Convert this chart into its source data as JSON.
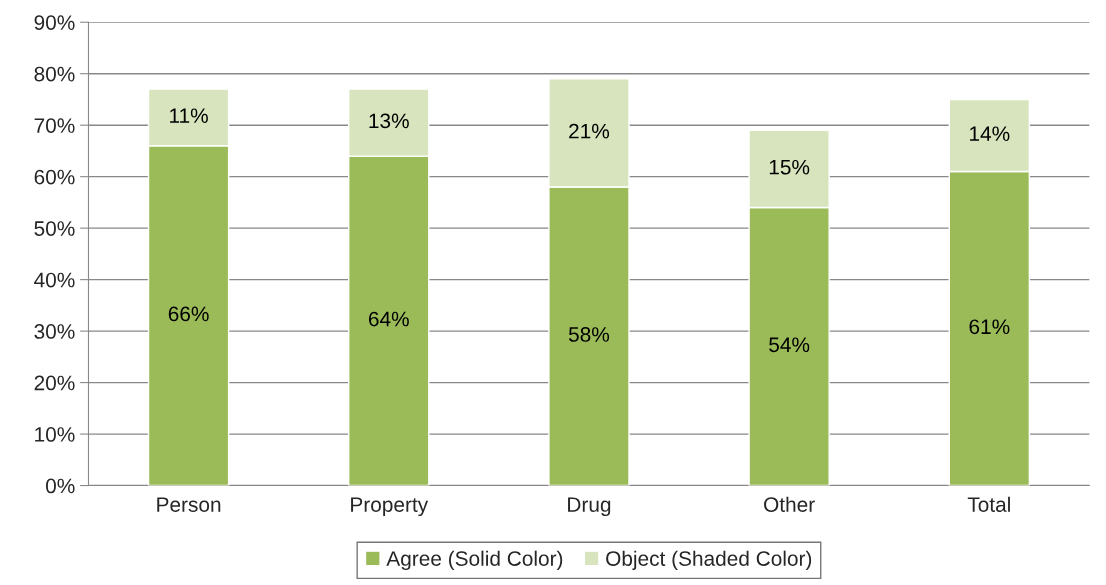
{
  "chart_data": {
    "type": "bar",
    "stacked": true,
    "categories": [
      "Person",
      "Property",
      "Drug",
      "Other",
      "Total"
    ],
    "series": [
      {
        "name": "Agree (Solid Color)",
        "color": "#9bbb59",
        "values": [
          66,
          64,
          58,
          54,
          61
        ],
        "value_labels": [
          "66%",
          "64%",
          "58%",
          "54%",
          "61%"
        ]
      },
      {
        "name": "Object (Shaded Color)",
        "color": "#d7e4bd",
        "values": [
          11,
          13,
          21,
          15,
          14
        ],
        "value_labels": [
          "11%",
          "13%",
          "21%",
          "15%",
          "14%"
        ]
      }
    ],
    "ylim": [
      0,
      90
    ],
    "yticks": [
      {
        "value": 0,
        "label": "0%"
      },
      {
        "value": 10,
        "label": "10%"
      },
      {
        "value": 20,
        "label": "20%"
      },
      {
        "value": 30,
        "label": "30%"
      },
      {
        "value": 40,
        "label": "40%"
      },
      {
        "value": 50,
        "label": "50%"
      },
      {
        "value": 60,
        "label": "60%"
      },
      {
        "value": 70,
        "label": "70%"
      },
      {
        "value": 80,
        "label": "80%"
      },
      {
        "value": 90,
        "label": "90%"
      }
    ],
    "grid": "y",
    "legend": "bottom"
  }
}
